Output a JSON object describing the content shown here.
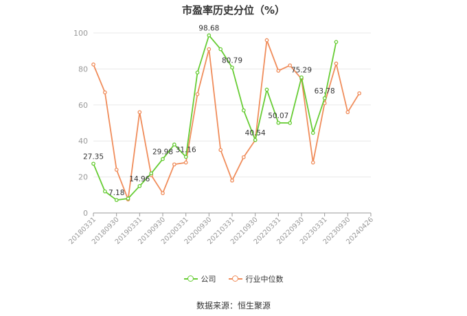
{
  "chart_data": {
    "type": "line",
    "title": "市盈率历史分位（%）",
    "xlabel": "",
    "ylabel": "",
    "ylim": [
      0,
      100
    ],
    "yticks": [
      "0",
      "20",
      "40",
      "60",
      "80",
      "100"
    ],
    "x_tick_labels": [
      "20180331",
      "20180930",
      "20190331",
      "20190930",
      "20200331",
      "20200930",
      "20210331",
      "20210930",
      "20220331",
      "20220930",
      "20230331",
      "20230930",
      "20240426"
    ],
    "x_tick_positions": [
      0,
      2,
      4,
      6,
      8,
      10,
      12,
      14,
      16,
      18,
      20,
      22,
      24
    ],
    "num_points": 25,
    "grid": true,
    "legend": "bottom",
    "series": [
      {
        "name": "公司",
        "color": "#66cc33",
        "values": [
          27.35,
          12,
          7.18,
          8,
          14.96,
          22,
          29.98,
          38,
          31.16,
          78,
          98.68,
          91,
          80.79,
          57,
          40.54,
          68.5,
          50.07,
          50,
          75.29,
          44.5,
          63.78,
          95,
          null,
          null,
          null
        ],
        "labels": [
          {
            "index": 0,
            "text": "27.35"
          },
          {
            "index": 2,
            "text": "7.18"
          },
          {
            "index": 4,
            "text": "14.96"
          },
          {
            "index": 6,
            "text": "29.98"
          },
          {
            "index": 8,
            "text": "31.16"
          },
          {
            "index": 10,
            "text": "98.68"
          },
          {
            "index": 12,
            "text": "80.79"
          },
          {
            "index": 14,
            "text": "40.54"
          },
          {
            "index": 16,
            "text": "50.07"
          },
          {
            "index": 18,
            "text": "75.29"
          },
          {
            "index": 20,
            "text": "63.78"
          }
        ]
      },
      {
        "name": "行业中位数",
        "color": "#f08c5a",
        "values": [
          82.5,
          67,
          24,
          7.5,
          56,
          21,
          11,
          27,
          28,
          66,
          91,
          35,
          18,
          31,
          40.5,
          96,
          79,
          82,
          74.5,
          28,
          61,
          83,
          56,
          66.5,
          null
        ],
        "labels": []
      }
    ]
  },
  "source_text": "数据来源：恒生聚源"
}
